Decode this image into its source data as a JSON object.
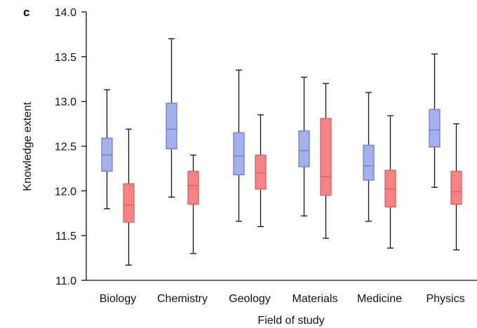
{
  "panel_label": "c",
  "colors": {
    "series_a_fill": "#a3b0ea",
    "series_a_stroke": "#6f7fc6",
    "series_b_fill": "#f58383",
    "series_b_stroke": "#d46262",
    "whisker": "#111111",
    "axis": "#111111"
  },
  "chart_data": {
    "type": "box",
    "title": "",
    "xlabel": "Field of study",
    "ylabel": "Knowledge extent",
    "ylim": [
      11.0,
      14.0
    ],
    "y_ticks": [
      "11.0",
      "11.5",
      "12.0",
      "12.5",
      "13.0",
      "13.5",
      "14.0"
    ],
    "categories": [
      "Biology",
      "Chemistry",
      "Geology",
      "Materials",
      "Medicine",
      "Physics"
    ],
    "grid": false,
    "legend": "none",
    "series": [
      {
        "color": "#a3b0ea",
        "boxes": [
          {
            "min": 11.8,
            "q1": 12.22,
            "median": 12.4,
            "q3": 12.59,
            "max": 13.13
          },
          {
            "min": 11.93,
            "q1": 12.47,
            "median": 12.69,
            "q3": 12.98,
            "max": 13.7
          },
          {
            "min": 11.66,
            "q1": 12.18,
            "median": 12.39,
            "q3": 12.65,
            "max": 13.35
          },
          {
            "min": 11.72,
            "q1": 12.27,
            "median": 12.45,
            "q3": 12.67,
            "max": 13.27
          },
          {
            "min": 11.66,
            "q1": 12.12,
            "median": 12.28,
            "q3": 12.51,
            "max": 13.1
          },
          {
            "min": 12.04,
            "q1": 12.49,
            "median": 12.68,
            "q3": 12.91,
            "max": 13.53
          }
        ]
      },
      {
        "color": "#f58383",
        "boxes": [
          {
            "min": 11.17,
            "q1": 11.65,
            "median": 11.84,
            "q3": 12.08,
            "max": 12.69
          },
          {
            "min": 11.3,
            "q1": 11.85,
            "median": 12.06,
            "q3": 12.22,
            "max": 12.4
          },
          {
            "min": 11.6,
            "q1": 12.02,
            "median": 12.2,
            "q3": 12.4,
            "max": 12.85
          },
          {
            "min": 11.47,
            "q1": 11.95,
            "median": 12.16,
            "q3": 12.81,
            "max": 13.2
          },
          {
            "min": 11.36,
            "q1": 11.82,
            "median": 12.02,
            "q3": 12.23,
            "max": 12.84
          },
          {
            "min": 11.34,
            "q1": 11.85,
            "median": 11.99,
            "q3": 12.22,
            "max": 12.75
          }
        ]
      }
    ]
  }
}
